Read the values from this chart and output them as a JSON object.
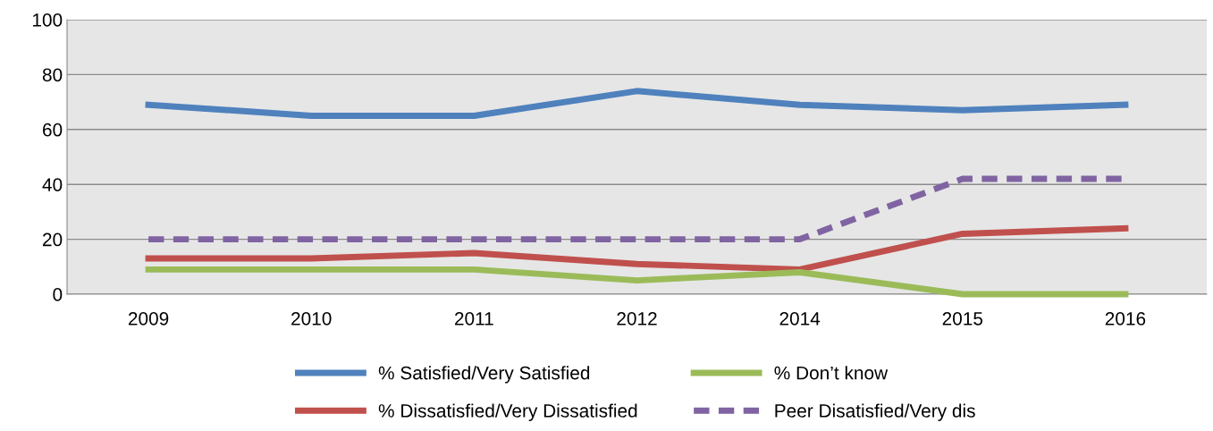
{
  "chart_data": {
    "type": "line",
    "categories": [
      "2009",
      "2010",
      "2011",
      "2012",
      "2014",
      "2015",
      "2016"
    ],
    "series": [
      {
        "name": "% Satisfied/Very Satisfied",
        "color": "#4f81bd",
        "values": [
          69,
          65,
          65,
          74,
          69,
          67,
          69
        ]
      },
      {
        "name": "% Dissatisfied/Very Dissatisfied",
        "color": "#c0504d",
        "values": [
          13,
          13,
          15,
          11,
          9,
          22,
          24
        ]
      },
      {
        "name": "% Don’t know",
        "color": "#9bbb59",
        "values": [
          9,
          9,
          9,
          5,
          8,
          0,
          0
        ]
      },
      {
        "name": "Peer Disatisfied/Very dis",
        "color": "#8064a2",
        "values": [
          20,
          20,
          20,
          20,
          20,
          42,
          42
        ],
        "line_style": "dashed"
      }
    ],
    "ylim": [
      0,
      100
    ],
    "yticks": [
      0,
      20,
      40,
      60,
      80,
      100
    ],
    "grid": "y",
    "legend": "bottom",
    "marker": "none",
    "line_style": "solid"
  }
}
